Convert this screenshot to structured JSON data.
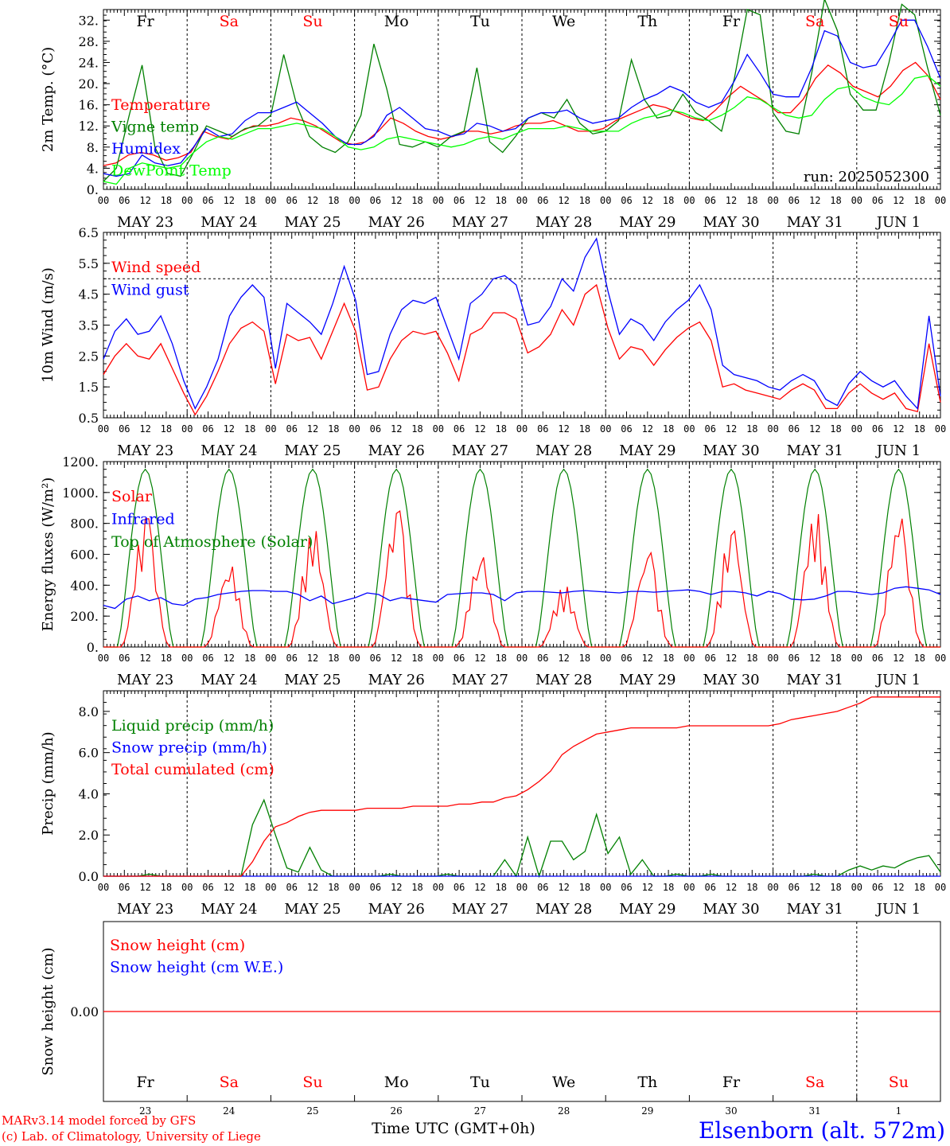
{
  "chart_data": [
    {
      "type": "line",
      "ylabel": "2m Temp. (°C)",
      "ylim": [
        0,
        34
      ],
      "yticks": [
        "0.",
        "4.",
        "8.",
        "12.",
        "16.",
        "20.",
        "24.",
        "28.",
        "32."
      ],
      "run_label": "run: 2025052300",
      "legend": [
        {
          "name": "Temperature",
          "color": "#ff0000"
        },
        {
          "name": "Vigne temp",
          "color": "#008000"
        },
        {
          "name": "Humidex",
          "color": "#0000ff"
        },
        {
          "name": "DewPoint Temp",
          "color": "#00ff00"
        }
      ],
      "series": [
        {
          "name": "Temperature",
          "color": "#ff0000",
          "values": [
            4.5,
            5,
            6.5,
            7,
            6.5,
            5.5,
            6,
            7,
            11,
            10,
            9.5,
            11,
            12,
            12,
            12.5,
            13.5,
            13,
            12,
            10.5,
            9,
            8.5,
            9,
            11,
            13.5,
            12.5,
            11,
            10,
            9.5,
            10,
            11,
            11,
            10.5,
            11,
            12,
            12.5,
            12.5,
            13,
            12,
            11,
            11,
            11.5,
            13,
            14,
            15,
            16,
            15.5,
            14.5,
            13.5,
            13,
            15,
            17.5,
            19.5,
            18,
            16.5,
            14.5,
            14.5,
            17,
            21,
            23.5,
            22,
            19.5,
            18.5,
            17.5,
            19.5,
            22.5,
            24,
            21.5,
            17
          ]
        },
        {
          "name": "Vigne temp",
          "color": "#008000",
          "values": [
            1.5,
            4,
            14,
            23.5,
            8,
            3,
            2.5,
            7,
            12,
            11,
            10,
            11.5,
            12,
            14,
            25.5,
            16,
            10,
            8,
            7,
            9,
            14,
            27.5,
            19,
            8.5,
            8,
            9,
            8,
            10,
            11,
            23,
            9,
            7,
            10,
            13.5,
            14.5,
            13.5,
            17,
            12.5,
            10.5,
            11,
            13,
            24.5,
            17,
            13.5,
            14,
            18,
            14.5,
            13,
            11,
            21,
            34,
            33,
            14.5,
            11,
            10.5,
            22,
            36,
            30,
            18,
            15,
            15,
            24,
            35,
            33,
            23,
            14
          ]
        },
        {
          "name": "Humidex",
          "color": "#0000ff",
          "values": [
            3,
            2.5,
            3,
            6.5,
            5,
            4.5,
            5,
            8,
            11.5,
            10,
            10.5,
            13,
            14.5,
            14.5,
            15.5,
            16.5,
            14.5,
            12.5,
            10,
            8.5,
            8.5,
            10,
            14,
            15.5,
            13.5,
            11.5,
            11,
            10,
            10.5,
            12.5,
            12,
            11,
            11.5,
            13.5,
            14.5,
            14.5,
            15,
            13.5,
            12.5,
            13,
            13.5,
            15.5,
            17,
            18,
            19.5,
            18.5,
            16.5,
            15.5,
            16.5,
            20.5,
            25.5,
            22,
            18,
            17.5,
            17.5,
            23,
            30,
            29,
            24,
            23,
            23.5,
            27.5,
            32,
            32,
            27,
            21
          ]
        },
        {
          "name": "DewPoint Temp",
          "color": "#00ff00",
          "values": [
            1.5,
            1,
            4,
            5,
            4.5,
            4,
            4.5,
            7,
            9,
            10,
            9.5,
            10.5,
            11.5,
            11.5,
            12,
            12.5,
            12,
            11.5,
            10,
            8,
            7.5,
            8,
            9.5,
            10,
            9.5,
            9,
            8.5,
            8,
            8.5,
            9.5,
            10,
            9.5,
            10.5,
            11.5,
            11.5,
            11.5,
            12,
            11.5,
            11,
            11,
            11,
            12.5,
            13.5,
            14,
            15,
            14.5,
            13.5,
            13,
            14,
            15.5,
            17.5,
            17,
            15.5,
            14,
            13.5,
            14,
            17,
            19,
            19.5,
            17.5,
            16.5,
            16,
            18,
            21,
            21.5,
            19.5
          ]
        }
      ]
    },
    {
      "type": "line",
      "ylabel": "10m Wind (m/s)",
      "ylim": [
        0.5,
        6.5
      ],
      "yticks": [
        "0.5",
        "1.5",
        "2.5",
        "3.5",
        "4.5",
        "5.5",
        "6.5"
      ],
      "reference_line": 5.0,
      "legend": [
        {
          "name": "Wind speed",
          "color": "#ff0000"
        },
        {
          "name": "Wind gust",
          "color": "#0000ff"
        }
      ],
      "series": [
        {
          "name": "Wind speed",
          "color": "#ff0000",
          "values": [
            1.9,
            2.5,
            2.9,
            2.5,
            2.4,
            2.9,
            2.1,
            1.3,
            0.6,
            1.2,
            2.0,
            2.9,
            3.4,
            3.6,
            3.3,
            1.6,
            3.2,
            3.0,
            3.1,
            2.4,
            3.3,
            4.2,
            3.3,
            1.4,
            1.5,
            2.4,
            3.0,
            3.3,
            3.2,
            3.3,
            2.6,
            1.7,
            3.2,
            3.4,
            3.9,
            3.9,
            3.7,
            2.6,
            2.8,
            3.2,
            4.0,
            3.5,
            4.5,
            4.8,
            3.4,
            2.4,
            2.8,
            2.7,
            2.2,
            2.7,
            3.1,
            3.4,
            3.6,
            3.0,
            1.5,
            1.6,
            1.4,
            1.3,
            1.2,
            1.1,
            1.4,
            1.6,
            1.4,
            0.8,
            0.8,
            1.3,
            1.6,
            1.3,
            1.1,
            1.3,
            0.8,
            0.7,
            2.9,
            1.0
          ]
        },
        {
          "name": "Wind gust",
          "color": "#0000ff",
          "values": [
            2.4,
            3.3,
            3.7,
            3.2,
            3.3,
            3.8,
            2.9,
            1.7,
            0.8,
            1.5,
            2.4,
            3.8,
            4.4,
            4.8,
            4.4,
            2.1,
            4.2,
            3.9,
            3.6,
            3.2,
            4.2,
            5.4,
            4.3,
            1.9,
            2.0,
            3.2,
            4.0,
            4.3,
            4.2,
            4.4,
            3.4,
            2.4,
            4.2,
            4.5,
            5.0,
            5.1,
            4.8,
            3.5,
            3.6,
            4.1,
            5.0,
            4.6,
            5.7,
            6.3,
            4.6,
            3.2,
            3.7,
            3.5,
            3.0,
            3.6,
            4.0,
            4.3,
            4.8,
            4.0,
            2.2,
            1.9,
            1.8,
            1.7,
            1.5,
            1.4,
            1.7,
            1.9,
            1.7,
            1.1,
            0.9,
            1.6,
            2.0,
            1.7,
            1.5,
            1.7,
            1.2,
            0.8,
            3.8,
            1.2
          ]
        }
      ]
    },
    {
      "type": "line",
      "ylabel": "Energy fluxes (W/m²)",
      "ylim": [
        0,
        1200
      ],
      "yticks": [
        "0.",
        "200.",
        "400.",
        "600.",
        "800.",
        "1000.",
        "1200."
      ],
      "legend": [
        {
          "name": "Solar",
          "color": "#ff0000"
        },
        {
          "name": "Infrared",
          "color": "#0000ff"
        },
        {
          "name": "Top of Atmosphere (Solar)",
          "color": "#008000"
        }
      ],
      "toa_peak": 1150,
      "solar_daily_peaks": [
        830,
        520,
        750,
        880,
        580,
        390,
        610,
        750,
        860,
        830
      ],
      "series": [
        {
          "name": "Infrared",
          "color": "#0000ff",
          "values": [
            270,
            250,
            310,
            330,
            300,
            320,
            280,
            270,
            310,
            320,
            340,
            350,
            360,
            365,
            365,
            360,
            360,
            340,
            300,
            330,
            280,
            300,
            320,
            350,
            340,
            300,
            320,
            310,
            300,
            290,
            340,
            345,
            350,
            350,
            340,
            300,
            350,
            360,
            360,
            355,
            350,
            360,
            365,
            360,
            355,
            350,
            360,
            360,
            355,
            360,
            365,
            370,
            360,
            340,
            360,
            360,
            350,
            330,
            360,
            345,
            310,
            305,
            310,
            330,
            360,
            360,
            350,
            340,
            350,
            380,
            390,
            380,
            370,
            340
          ]
        }
      ]
    },
    {
      "type": "line",
      "ylabel": "Precip (mm/h)",
      "ylim": [
        0,
        9
      ],
      "yticks": [
        "0.0",
        "2.0",
        "4.0",
        "6.0",
        "8.0"
      ],
      "legend": [
        {
          "name": "Liquid precip (mm/h)",
          "color": "#008000"
        },
        {
          "name": "Snow precip (mm/h)",
          "color": "#0000ff"
        },
        {
          "name": "Total cumulated (cm)",
          "color": "#ff0000"
        }
      ],
      "series": [
        {
          "name": "Liquid precip (mm/h)",
          "color": "#008000",
          "values": [
            0,
            0,
            0,
            0,
            0.1,
            0,
            0,
            0,
            0,
            0,
            0,
            0,
            0,
            2.5,
            3.7,
            2.0,
            0.4,
            0.2,
            1.4,
            0.3,
            0,
            0,
            0,
            0,
            0,
            0.1,
            0,
            0,
            0,
            0,
            0.1,
            0,
            0,
            0,
            0,
            0.8,
            0,
            1.9,
            0,
            1.7,
            1.7,
            0.8,
            1.2,
            3.0,
            1.1,
            1.9,
            0.1,
            0.8,
            0,
            0,
            0.1,
            0,
            0,
            0.1,
            0,
            0,
            0,
            0,
            0,
            0,
            0,
            0,
            0.1,
            0,
            0,
            0.3,
            0.5,
            0.3,
            0.5,
            0.4,
            0.7,
            0.9,
            1.0,
            0.2
          ]
        },
        {
          "name": "Snow precip (mm/h)",
          "color": "#0000ff",
          "values": [
            0,
            0,
            0,
            0,
            0,
            0,
            0,
            0,
            0,
            0,
            0,
            0,
            0,
            0,
            0,
            0,
            0,
            0,
            0,
            0,
            0,
            0,
            0,
            0,
            0,
            0,
            0,
            0,
            0,
            0,
            0,
            0,
            0,
            0,
            0,
            0,
            0,
            0,
            0,
            0,
            0,
            0,
            0,
            0,
            0,
            0,
            0,
            0,
            0,
            0,
            0,
            0,
            0,
            0,
            0,
            0,
            0,
            0,
            0,
            0,
            0,
            0,
            0,
            0,
            0,
            0,
            0,
            0,
            0,
            0,
            0,
            0,
            0,
            0
          ]
        },
        {
          "name": "Total cumulated (cm)",
          "color": "#ff0000",
          "values": [
            0,
            0,
            0,
            0,
            0,
            0,
            0,
            0,
            0,
            0,
            0,
            0,
            0,
            0.7,
            1.7,
            2.4,
            2.6,
            2.9,
            3.1,
            3.2,
            3.2,
            3.2,
            3.2,
            3.3,
            3.3,
            3.3,
            3.3,
            3.4,
            3.4,
            3.4,
            3.4,
            3.5,
            3.5,
            3.6,
            3.6,
            3.8,
            3.9,
            4.2,
            4.6,
            5.1,
            5.9,
            6.3,
            6.6,
            6.9,
            7.0,
            7.1,
            7.2,
            7.2,
            7.2,
            7.2,
            7.2,
            7.3,
            7.3,
            7.3,
            7.3,
            7.3,
            7.3,
            7.3,
            7.3,
            7.4,
            7.6,
            7.7,
            7.8,
            7.9,
            8.0,
            8.2,
            8.4,
            8.7,
            8.7,
            8.7,
            8.7,
            8.7,
            8.7,
            8.7
          ]
        }
      ]
    },
    {
      "type": "line",
      "ylabel": "Snow height (cm)",
      "yticks": [
        "0.00"
      ],
      "legend": [
        {
          "name": "Snow height (cm)",
          "color": "#ff0000"
        },
        {
          "name": "Snow height (cm W.E.)",
          "color": "#0000ff"
        }
      ],
      "series": [
        {
          "name": "Snow height (cm)",
          "color": "#ff0000",
          "values": [
            0,
            0
          ]
        }
      ]
    }
  ],
  "hour_ticks": [
    "00",
    "06",
    "12",
    "18"
  ],
  "end_tick": "00",
  "date_labels": [
    "MAY 23",
    "MAY 24",
    "MAY 25",
    "MAY 26",
    "MAY 27",
    "MAY 28",
    "MAY 29",
    "MAY 30",
    "MAY 31",
    "JUN  1"
  ],
  "weekdays": [
    {
      "label": "Fr",
      "color": "#000000"
    },
    {
      "label": "Sa",
      "color": "#ff0000"
    },
    {
      "label": "Su",
      "color": "#ff0000"
    },
    {
      "label": "Mo",
      "color": "#000000"
    },
    {
      "label": "Tu",
      "color": "#000000"
    },
    {
      "label": "We",
      "color": "#000000"
    },
    {
      "label": "Th",
      "color": "#000000"
    },
    {
      "label": "Fr",
      "color": "#000000"
    },
    {
      "label": "Sa",
      "color": "#ff0000"
    },
    {
      "label": "Su",
      "color": "#ff0000"
    }
  ],
  "day_numbers": [
    "23",
    "24",
    "25",
    "26",
    "27",
    "28",
    "29",
    "30",
    "31",
    "1"
  ],
  "footer": {
    "model_line": "MARv3.14 model forced by GFS",
    "copyright_line": "(c) Lab. of Climatology, University of Liege",
    "xlabel": "Time UTC (GMT+0h)",
    "station": "Elsenborn (alt. 572m)"
  }
}
